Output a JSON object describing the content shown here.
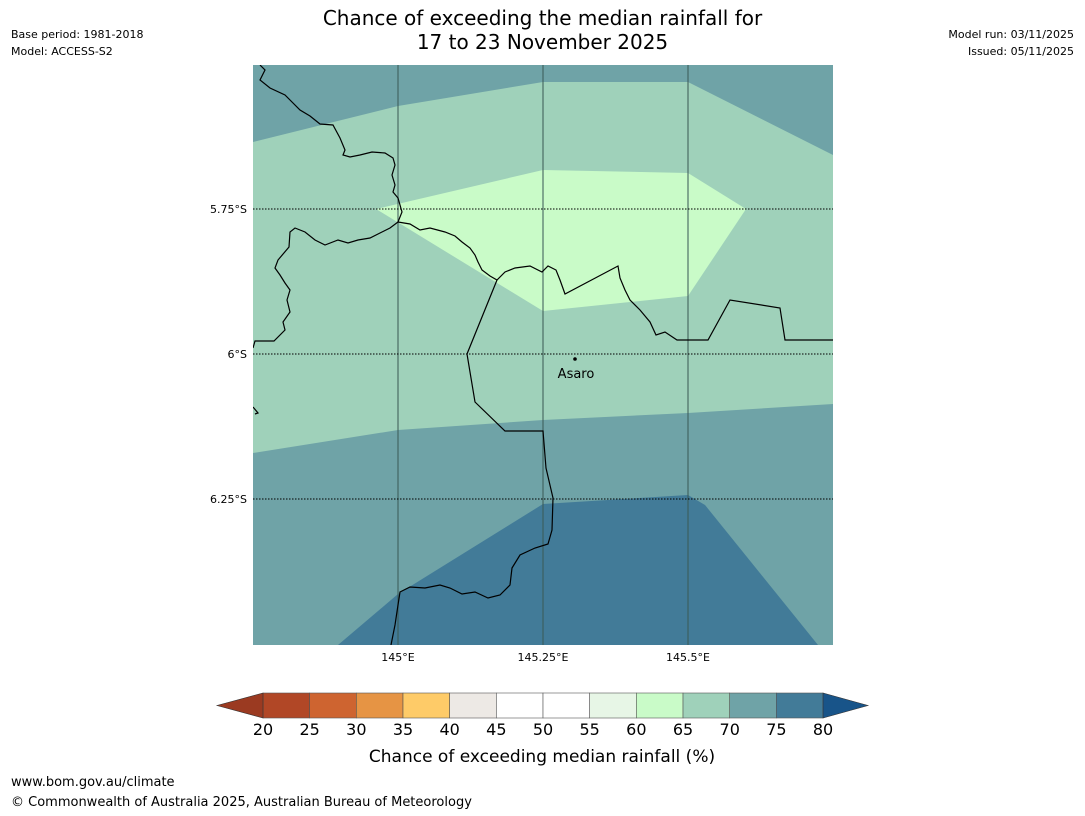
{
  "header": {
    "title_line1": "Chance of exceeding the median rainfall for",
    "title_line2": "17 to 23 November 2025",
    "base_period": "Base period: 1981-2018",
    "model": "Model: ACCESS-S2",
    "model_run": "Model run: 03/11/2025",
    "issued": "Issued: 05/11/2025"
  },
  "map": {
    "latitude_labels": [
      "5.75°S",
      "6°S",
      "6.25°S"
    ],
    "longitude_labels": [
      "145°E",
      "145.25°E",
      "145.5°E"
    ],
    "place_label": "Asaro",
    "zone_colors": {
      "65-70": "#9fd1ba",
      "70-75": "#6fa3a7",
      "75-80": "#427b98",
      "60-65": "#c9fbc8"
    }
  },
  "legend": {
    "title": "Chance of exceeding median rainfall (%)",
    "ticks": [
      "20",
      "25",
      "30",
      "35",
      "40",
      "45",
      "50",
      "55",
      "60",
      "65",
      "70",
      "75",
      "80"
    ],
    "colors": [
      "#b14726",
      "#ce6430",
      "#e69444",
      "#fecb68",
      "#ede9e5",
      "#ffffff",
      "#ffffff",
      "#e7f6e6",
      "#c9fbc8",
      "#9fd1ba",
      "#6fa3a7",
      "#427b98"
    ],
    "under_color": "#9b3a21",
    "over_color": "#185489"
  },
  "footer": {
    "url": "www.bom.gov.au/climate",
    "copyright": "© Commonwealth of Australia 2025, Australian Bureau of Meteorology"
  }
}
